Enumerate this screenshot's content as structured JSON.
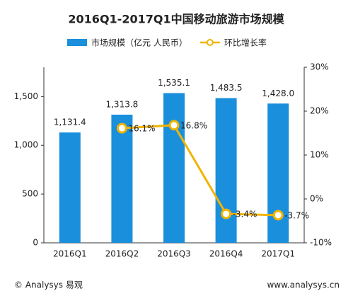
{
  "chart_data": {
    "type": "bar-line",
    "title": "2016Q1-2017Q1中国移动旅游市场规模",
    "categories": [
      "2016Q1",
      "2016Q2",
      "2016Q3",
      "2016Q4",
      "2017Q1"
    ],
    "series": [
      {
        "name": "市场规模（亿元 人民币）",
        "type": "bar",
        "color": "#1a8fdc",
        "values": [
          1131.4,
          1313.8,
          1535.1,
          1483.5,
          1428.0
        ],
        "value_labels": [
          "1,131.4",
          "1,313.8",
          "1,535.1",
          "1,483.5",
          "1,428.0"
        ]
      },
      {
        "name": "环比增长率",
        "type": "line",
        "axis": "y2",
        "color": "#f0b400",
        "values": [
          null,
          16.1,
          16.8,
          -3.4,
          -3.7
        ],
        "value_labels": [
          null,
          "16.1%",
          "16.8%",
          "-3.4%",
          "-3.7%"
        ]
      }
    ],
    "ylim": [
      0,
      1800
    ],
    "yticks": [
      0,
      500,
      {
        "value": 1000,
        "label": "1,000"
      },
      {
        "value": 1500,
        "label": "1,500"
      }
    ],
    "y2lim": [
      -10,
      30
    ],
    "y2ticks": [
      {
        "value": -10,
        "label": "-10%"
      },
      {
        "value": 0,
        "label": "0%"
      },
      {
        "value": 10,
        "label": "10%"
      },
      {
        "value": 20,
        "label": "20%"
      },
      {
        "value": 30,
        "label": "30%"
      }
    ],
    "footer_left": "© Analysys 易观",
    "footer_right": "www.analysys.cn"
  }
}
